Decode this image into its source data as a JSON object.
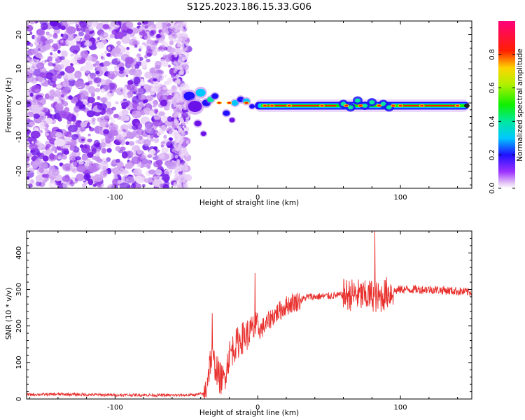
{
  "figure_title": "S125.2023.186.15.33.G06",
  "colors": {
    "snr_line": "#e8302d",
    "axis": "#000000",
    "background": "#ffffff",
    "noise_purple": "#7a1ee6"
  },
  "chart_data": [
    {
      "type": "heatmap",
      "xlabel": "Height of straight line (km)",
      "ylabel": "Frequency (Hz)",
      "xlim": [
        -162,
        150
      ],
      "ylim": [
        -25,
        24
      ],
      "x_ticks": [
        -100,
        0,
        100
      ],
      "x_tick_labels": [
        "-100",
        "0",
        "100"
      ],
      "y_ticks": [
        -20,
        -10,
        0,
        10,
        20
      ],
      "y_tick_labels": [
        "-20",
        "-10",
        "0",
        "10",
        "20"
      ],
      "noise_region_x": [
        -162,
        -50
      ],
      "signal_band": {
        "center_freq_hz": -0.8,
        "x_start": -52,
        "x_end": 148,
        "hot_spots_x": [
          -27,
          -20,
          -8,
          5,
          10,
          22,
          45,
          62,
          72,
          85,
          95,
          100,
          115,
          140
        ]
      },
      "colorbar": {
        "label": "Normalized spectral amplitude",
        "range": [
          0,
          1
        ],
        "ticks": [
          0.0,
          0.2,
          0.4,
          0.6,
          0.8
        ],
        "tick_labels": [
          "0.0",
          "0.2",
          "0.4",
          "0.6",
          "0.8"
        ]
      }
    },
    {
      "type": "line",
      "xlabel": "Height of straight line (km)",
      "ylabel": "SNR (10 * v/v)",
      "xlim": [
        -162,
        150
      ],
      "ylim": [
        0,
        460
      ],
      "x_ticks": [
        -100,
        0,
        100
      ],
      "x_tick_labels": [
        "-100",
        "0",
        "100"
      ],
      "y_ticks": [
        0,
        100,
        200,
        300,
        400
      ],
      "y_tick_labels": [
        "0",
        "100",
        "200",
        "300",
        "400"
      ],
      "series": [
        {
          "name": "SNR",
          "x": [
            -162,
            -140,
            -120,
            -100,
            -80,
            -60,
            -45,
            -37,
            -33,
            -30,
            -27,
            -24,
            -20,
            -17,
            -14,
            -10,
            -6,
            -2,
            2,
            6,
            10,
            15,
            20,
            25,
            30,
            35,
            40,
            50,
            60,
            70,
            75,
            80,
            85,
            90,
            95,
            100,
            110,
            120,
            130,
            140,
            150
          ],
          "y": [
            12,
            13,
            12,
            11,
            11,
            10,
            11,
            15,
            110,
            95,
            60,
            50,
            120,
            140,
            155,
            170,
            180,
            195,
            190,
            205,
            225,
            240,
            255,
            265,
            270,
            280,
            280,
            282,
            285,
            285,
            280,
            285,
            275,
            290,
            295,
            300,
            300,
            300,
            298,
            295,
            292
          ]
        }
      ],
      "highlights": [
        {
          "x": -32,
          "y": 235
        },
        {
          "x": -2,
          "y": 345
        },
        {
          "x": 82,
          "y": 460
        }
      ]
    }
  ]
}
